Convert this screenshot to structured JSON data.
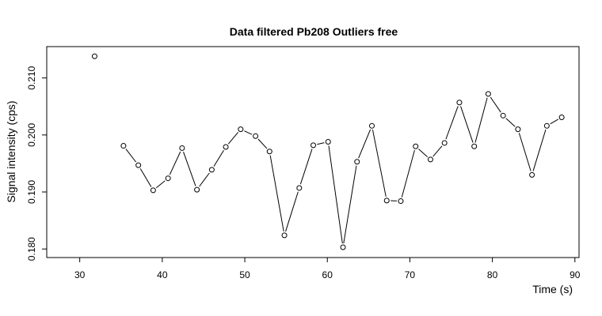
{
  "chart_data": {
    "type": "line",
    "title": "Data filtered Pb208 Outliers free",
    "xlabel": "Time (s)",
    "ylabel": "Signal intensity (cps)",
    "xlim": [
      26,
      90.5
    ],
    "ylim": [
      0.1785,
      0.2155
    ],
    "xticks": [
      30,
      40,
      50,
      60,
      70,
      80,
      90
    ],
    "yticks": [
      0.18,
      0.19,
      0.2,
      0.21
    ],
    "xtick_labels": [
      "30",
      "40",
      "50",
      "60",
      "70",
      "80",
      "90"
    ],
    "ytick_labels": [
      "0.180",
      "0.190",
      "0.200",
      "0.210"
    ],
    "grid": false,
    "series": [
      {
        "segments": [
          [
            [
              31.8,
              0.2138
            ]
          ],
          [
            [
              35.3,
              0.1981
            ],
            [
              37.1,
              0.1947
            ],
            [
              38.9,
              0.1903
            ],
            [
              40.7,
              0.1924
            ],
            [
              42.4,
              0.1977
            ],
            [
              44.2,
              0.1904
            ],
            [
              46.0,
              0.1939
            ],
            [
              47.7,
              0.1979
            ],
            [
              49.5,
              0.201
            ],
            [
              51.3,
              0.1998
            ],
            [
              53.0,
              0.1971
            ],
            [
              54.8,
              0.1824
            ],
            [
              56.6,
              0.1907
            ],
            [
              58.3,
              0.1982
            ],
            [
              60.1,
              0.1988
            ],
            [
              61.9,
              0.1803
            ],
            [
              63.6,
              0.1953
            ],
            [
              65.4,
              0.2016
            ],
            [
              67.2,
              0.1885
            ],
            [
              68.9,
              0.1884
            ],
            [
              70.7,
              0.198
            ],
            [
              72.5,
              0.1957
            ],
            [
              74.2,
              0.1986
            ],
            [
              76.0,
              0.2057
            ],
            [
              77.8,
              0.198
            ],
            [
              79.5,
              0.2072
            ],
            [
              81.3,
              0.2034
            ],
            [
              83.1,
              0.201
            ],
            [
              84.8,
              0.193
            ],
            [
              86.6,
              0.2016
            ],
            [
              88.4,
              0.2031
            ]
          ]
        ]
      }
    ]
  }
}
